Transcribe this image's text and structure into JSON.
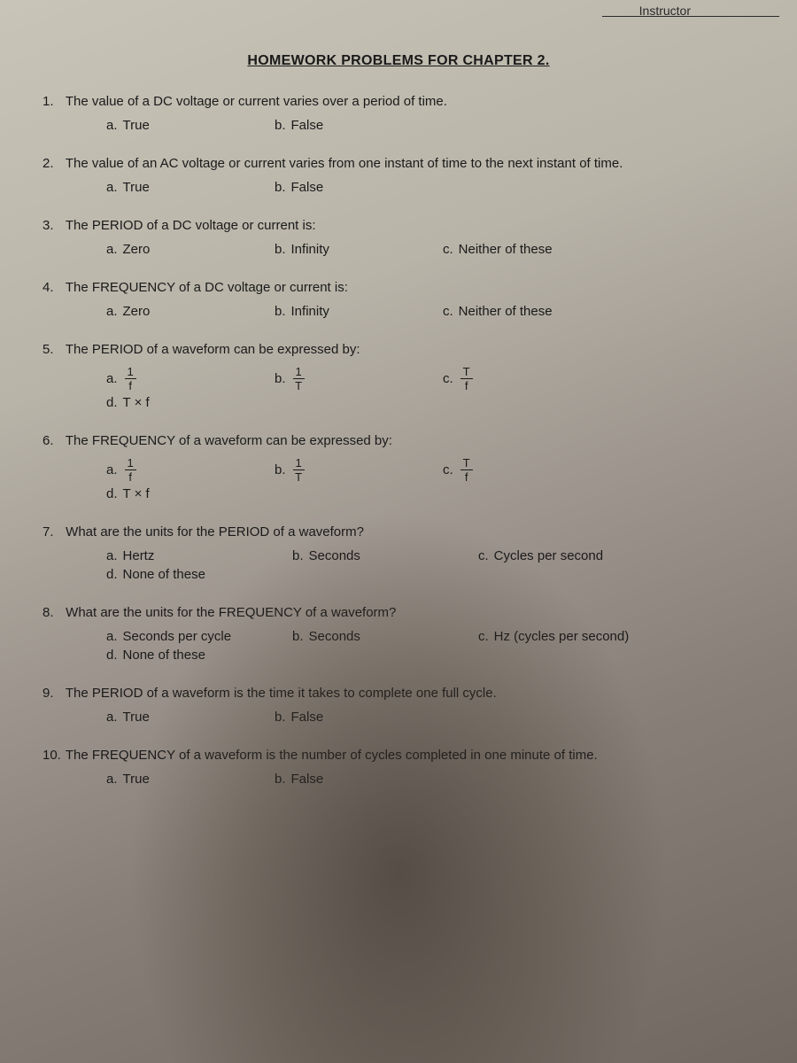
{
  "header": {
    "instructor_label": "Instructor",
    "title": "HOMEWORK PROBLEMS FOR CHAPTER 2."
  },
  "questions": [
    {
      "num": "1.",
      "text": "The value of a  DC voltage or current varies over a period of time.",
      "options": [
        {
          "letter": "a.",
          "text": "True"
        },
        {
          "letter": "b.",
          "text": "False"
        }
      ]
    },
    {
      "num": "2.",
      "text": "The value of an AC voltage or current varies from one instant of time to the next instant of time.",
      "options": [
        {
          "letter": "a.",
          "text": "True"
        },
        {
          "letter": "b.",
          "text": "False"
        }
      ]
    },
    {
      "num": "3.",
      "text": "The PERIOD of a DC voltage or current is:",
      "options": [
        {
          "letter": "a.",
          "text": "Zero"
        },
        {
          "letter": "b.",
          "text": "Infinity"
        },
        {
          "letter": "c.",
          "text": "Neither of these"
        }
      ]
    },
    {
      "num": "4.",
      "text": "The FREQUENCY of a DC voltage or current is:",
      "options": [
        {
          "letter": "a.",
          "text": "Zero"
        },
        {
          "letter": "b.",
          "text": "Infinity"
        },
        {
          "letter": "c.",
          "text": "Neither of these"
        }
      ]
    },
    {
      "num": "5.",
      "text": "The PERIOD of a waveform can be expressed by:",
      "options": [
        {
          "letter": "a.",
          "fraction": {
            "num": "1",
            "den": "f"
          }
        },
        {
          "letter": "b.",
          "fraction": {
            "num": "1",
            "den": "T"
          }
        },
        {
          "letter": "c.",
          "fraction": {
            "num": "T",
            "den": "f"
          }
        },
        {
          "letter": "d.",
          "text": "T × f"
        }
      ]
    },
    {
      "num": "6.",
      "text": "The FREQUENCY of a waveform can be expressed by:",
      "options": [
        {
          "letter": "a.",
          "fraction": {
            "num": "1",
            "den": "f"
          }
        },
        {
          "letter": "b.",
          "fraction": {
            "num": "1",
            "den": "T"
          }
        },
        {
          "letter": "c.",
          "fraction": {
            "num": "T",
            "den": "f"
          }
        },
        {
          "letter": "d.",
          "text": "T × f"
        }
      ]
    },
    {
      "num": "7.",
      "text": "What are the units for the PERIOD of a waveform?",
      "options": [
        {
          "letter": "a.",
          "text": "Hertz"
        },
        {
          "letter": "b.",
          "text": "Seconds"
        },
        {
          "letter": "c.",
          "text": "Cycles per second"
        },
        {
          "letter": "d.",
          "text": "None of these"
        }
      ]
    },
    {
      "num": "8.",
      "text": "What are the units for the FREQUENCY of a waveform?",
      "options": [
        {
          "letter": "a.",
          "text": "Seconds per cycle"
        },
        {
          "letter": "b.",
          "text": "Seconds"
        },
        {
          "letter": "c.",
          "text": "Hz (cycles per second)"
        },
        {
          "letter": "d.",
          "text": "None of these"
        }
      ]
    },
    {
      "num": "9.",
      "text": "The PERIOD of a waveform is the time it takes to complete one full cycle.",
      "options": [
        {
          "letter": "a.",
          "text": "True"
        },
        {
          "letter": "b.",
          "text": "False"
        }
      ]
    },
    {
      "num": "10.",
      "text": "The FREQUENCY of a waveform is the number of cycles completed in one minute of time.",
      "options": [
        {
          "letter": "a.",
          "text": "True"
        },
        {
          "letter": "b.",
          "text": "False"
        }
      ]
    }
  ]
}
